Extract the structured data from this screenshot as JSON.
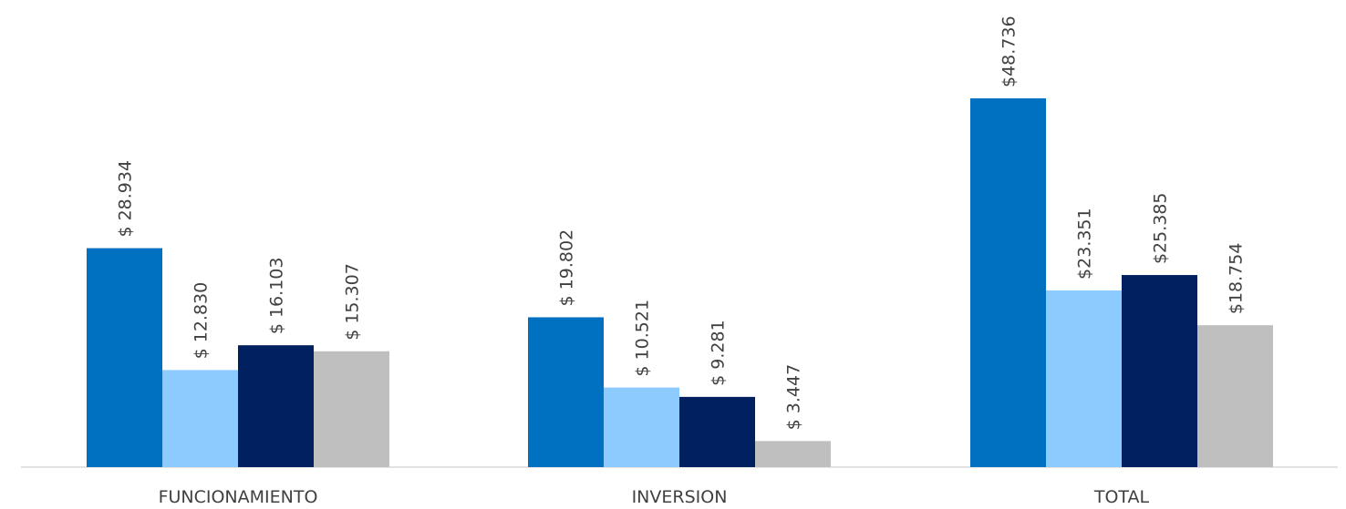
{
  "chart_data": {
    "type": "bar",
    "categories": [
      "FUNCIONAMIENTO",
      "INVERSION",
      "TOTAL"
    ],
    "series": [
      {
        "values": [
          28934,
          19802,
          48736
        ],
        "labels": [
          "$ 28.934",
          "$ 19.802",
          "$48.736"
        ],
        "color": "#0070C0"
      },
      {
        "values": [
          12830,
          10521,
          23351
        ],
        "labels": [
          "$ 12.830",
          "$ 10.521",
          "$23.351"
        ],
        "color": "#8DCBFF"
      },
      {
        "values": [
          16103,
          9281,
          25385
        ],
        "labels": [
          "$ 16.103",
          "$ 9.281",
          "$25.385"
        ],
        "color": "#002060"
      },
      {
        "values": [
          15307,
          3447,
          18754
        ],
        "labels": [
          "$ 15.307",
          "$ 3.447",
          "$18.754"
        ],
        "color": "#BFBFBF"
      }
    ],
    "ylim": [
      0,
      48736
    ],
    "grid": false,
    "legend": "none"
  }
}
